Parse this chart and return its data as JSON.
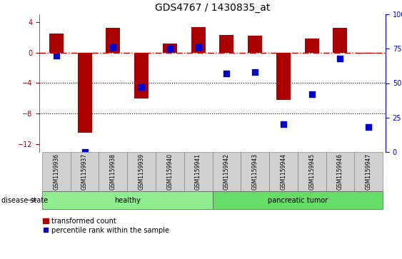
{
  "title": "GDS4767 / 1430835_at",
  "samples": [
    "GSM1159936",
    "GSM1159937",
    "GSM1159938",
    "GSM1159939",
    "GSM1159940",
    "GSM1159941",
    "GSM1159942",
    "GSM1159943",
    "GSM1159944",
    "GSM1159945",
    "GSM1159946",
    "GSM1159947"
  ],
  "transformed_counts": [
    2.5,
    -10.5,
    3.2,
    -6.0,
    1.2,
    3.3,
    2.3,
    2.2,
    -6.2,
    1.8,
    3.2,
    -0.1
  ],
  "percentile_ranks": [
    70,
    0,
    76,
    47,
    75,
    76,
    57,
    58,
    20,
    42,
    68,
    18
  ],
  "groups": [
    "healthy",
    "healthy",
    "healthy",
    "healthy",
    "healthy",
    "healthy",
    "pancreatic tumor",
    "pancreatic tumor",
    "pancreatic tumor",
    "pancreatic tumor",
    "pancreatic tumor",
    "pancreatic tumor"
  ],
  "bar_color": "#AA0000",
  "scatter_color": "#0000CC",
  "ylim_left": [
    -13,
    5
  ],
  "ylim_right": [
    0,
    100
  ],
  "yticks_left": [
    -12,
    -8,
    -4,
    0,
    4
  ],
  "yticks_right": [
    0,
    25,
    50,
    75,
    100
  ],
  "hline_y": 0,
  "hline_color": "#CC0000",
  "dotted_lines": [
    -4,
    -8
  ],
  "group_colors": {
    "healthy": "#90EE90",
    "pancreatic tumor": "#66DD66"
  },
  "disease_state_label": "disease state",
  "legend_bar_label": "transformed count",
  "legend_scatter_label": "percentile rank within the sample",
  "background_color": "#FFFFFF",
  "bar_width": 0.5
}
